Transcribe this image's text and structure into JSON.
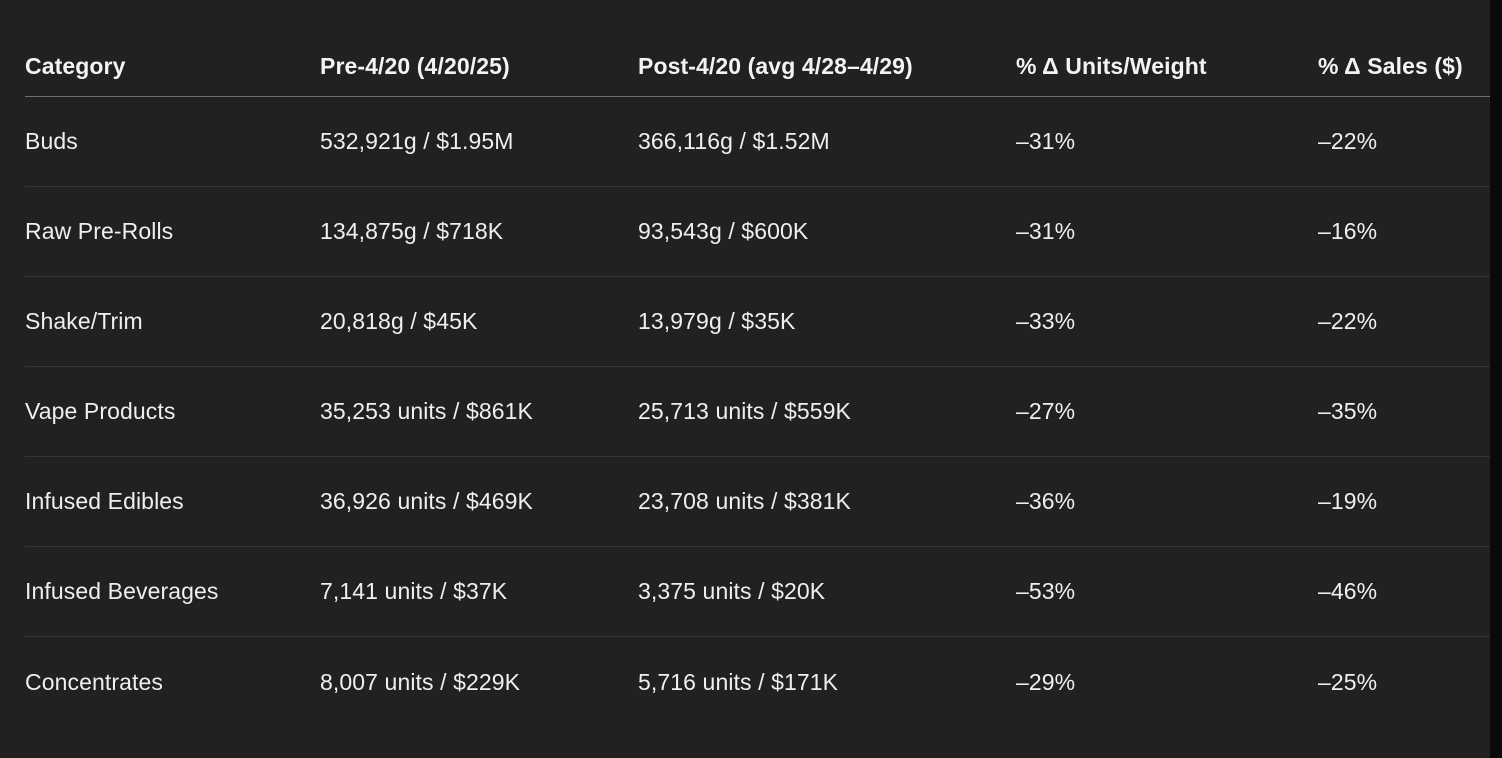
{
  "colors": {
    "background": "#212121",
    "text": "#f3f3f3",
    "row_divider": "#353535",
    "header_divider": "#6f6f6f",
    "right_edge_strip": "#0a0a0a"
  },
  "table": {
    "columns": [
      {
        "label": "Category"
      },
      {
        "label": "Pre-4/20 (4/20/25)"
      },
      {
        "label": "Post-4/20 (avg 4/28–4/29)"
      },
      {
        "label": "% Δ Units/Weight"
      },
      {
        "label": "% Δ Sales ($)"
      }
    ],
    "rows": [
      {
        "category": "Buds",
        "pre": "532,921g / $1.95M",
        "post": "366,116g / $1.52M",
        "delta_units": "–31%",
        "delta_sales": "–22%"
      },
      {
        "category": "Raw Pre-Rolls",
        "pre": "134,875g / $718K",
        "post": "93,543g / $600K",
        "delta_units": "–31%",
        "delta_sales": "–16%"
      },
      {
        "category": "Shake/Trim",
        "pre": "20,818g / $45K",
        "post": "13,979g / $35K",
        "delta_units": "–33%",
        "delta_sales": "–22%"
      },
      {
        "category": "Vape Products",
        "pre": "35,253 units / $861K",
        "post": "25,713 units / $559K",
        "delta_units": "–27%",
        "delta_sales": "–35%"
      },
      {
        "category": "Infused Edibles",
        "pre": "36,926 units / $469K",
        "post": "23,708 units / $381K",
        "delta_units": "–36%",
        "delta_sales": "–19%"
      },
      {
        "category": "Infused Beverages",
        "pre": "7,141 units / $37K",
        "post": "3,375 units / $20K",
        "delta_units": "–53%",
        "delta_sales": "–46%"
      },
      {
        "category": "Concentrates",
        "pre": "8,007 units / $229K",
        "post": "5,716 units / $171K",
        "delta_units": "–29%",
        "delta_sales": "–25%"
      }
    ]
  }
}
